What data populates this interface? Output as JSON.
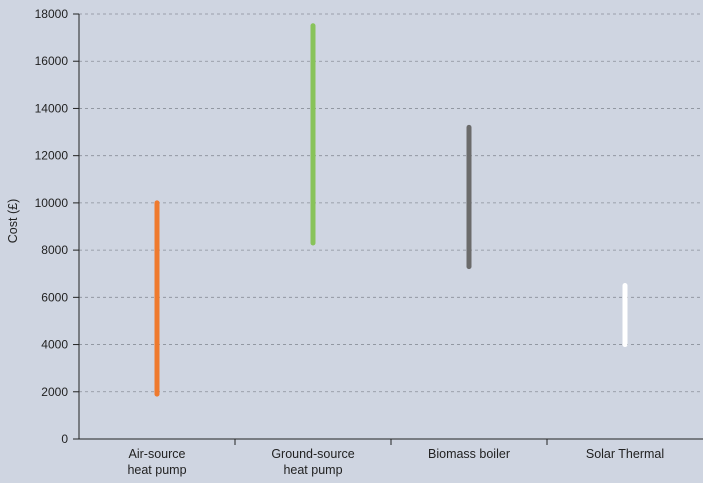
{
  "chart_data": {
    "type": "range-bar",
    "ylabel": "Cost (£)",
    "xlabel": "",
    "ylim": [
      0,
      18000
    ],
    "yticks": [
      0,
      2000,
      4000,
      6000,
      8000,
      10000,
      12000,
      14000,
      16000,
      18000
    ],
    "grid": true,
    "categories": [
      [
        "Air-source",
        "heat pump"
      ],
      [
        "Ground-source",
        "heat pump"
      ],
      [
        "Biomass boiler"
      ],
      [
        "Solar Thermal"
      ]
    ],
    "ranges": [
      {
        "low": 1900,
        "high": 10000,
        "color": "#ef7a2e"
      },
      {
        "low": 8300,
        "high": 17500,
        "color": "#88c35a"
      },
      {
        "low": 7300,
        "high": 13200,
        "color": "#6b6b6b"
      },
      {
        "low": 4000,
        "high": 6500,
        "color": "#ffffff"
      }
    ]
  }
}
